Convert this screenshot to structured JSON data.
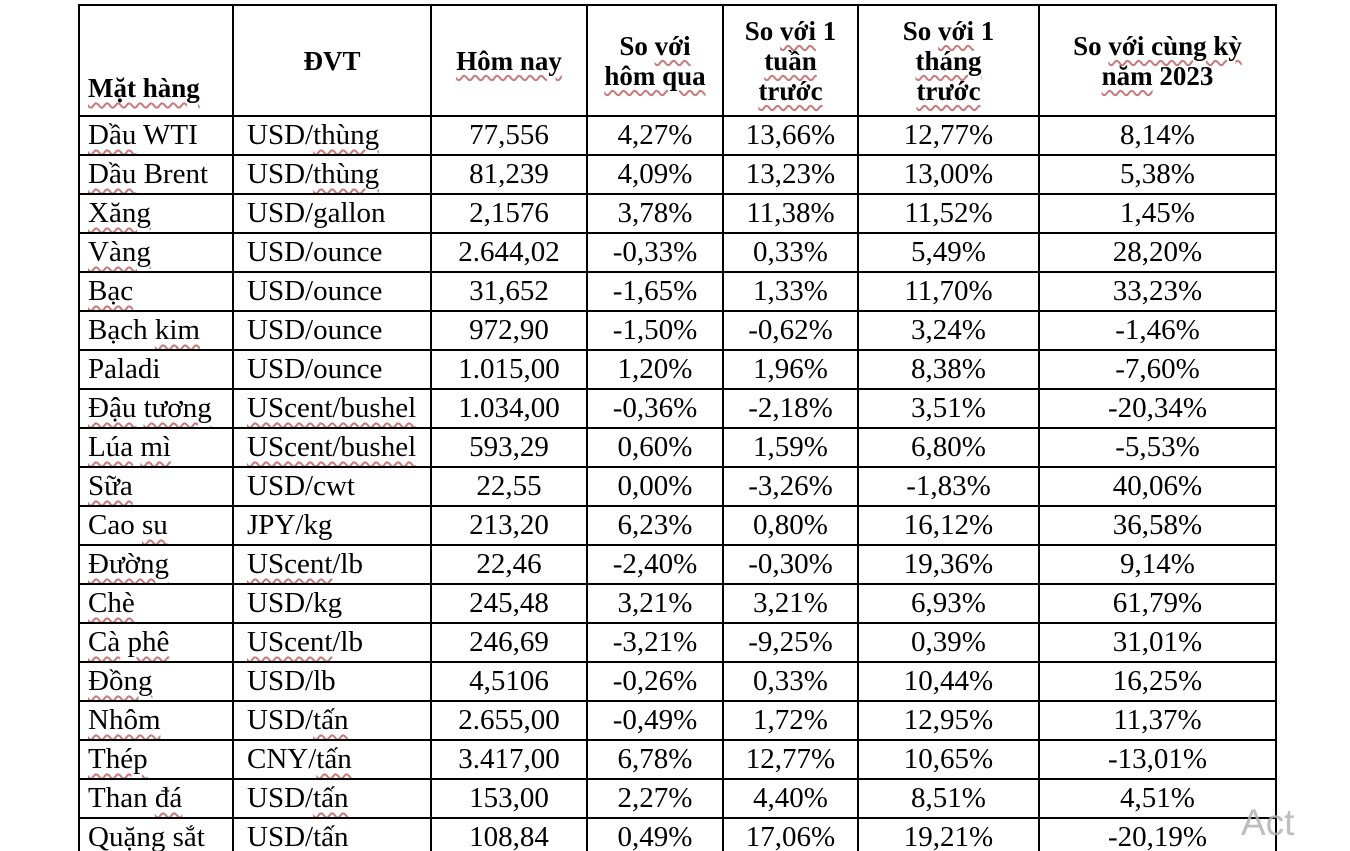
{
  "watermark": {
    "text": "Act"
  },
  "styles": {
    "spellcheck_underline_color": "#c97b7b",
    "table_border_color": "#000000",
    "text_color": "#000000",
    "watermark_color": "#b3b3b3",
    "background_color": "#ffffff"
  },
  "table": {
    "columns": [
      {
        "id": "name",
        "label": "Mặt hàng",
        "lines": [
          "Mặt hàng"
        ],
        "wavy": [
          "Mặt hàng"
        ]
      },
      {
        "id": "unit",
        "label": "ĐVT",
        "lines": [
          "ĐVT"
        ],
        "wavy": []
      },
      {
        "id": "today",
        "label": "Hôm nay",
        "lines": [
          "Hôm nay"
        ],
        "wavy": [
          "Hôm nay"
        ]
      },
      {
        "id": "vs_yesterday",
        "label": "So với hôm qua",
        "lines": [
          "So với",
          "hôm qua"
        ],
        "wavy": [
          "với",
          "hôm qua"
        ]
      },
      {
        "id": "vs_week",
        "label": "So với 1 tuần trước",
        "lines": [
          "So với 1",
          "tuần",
          "trước"
        ],
        "wavy": [
          "với",
          "tuần",
          "trước"
        ]
      },
      {
        "id": "vs_month",
        "label": "So với 1 tháng trước",
        "lines": [
          "So với 1",
          "tháng",
          "trước"
        ],
        "wavy": [
          "với",
          "tháng",
          "trước"
        ]
      },
      {
        "id": "vs_2023",
        "label": "So với cùng kỳ năm 2023",
        "lines": [
          "So với cùng kỳ",
          "năm 2023"
        ],
        "wavy": [
          "với cùng kỳ",
          "năm"
        ]
      }
    ],
    "rows": [
      {
        "name": "Dầu WTI",
        "name_wavy": [
          "Dầu"
        ],
        "unit": "USD/thùng",
        "unit_wavy": [
          "thùng"
        ],
        "today": "77,556",
        "vs_yesterday": "4,27%",
        "vs_week": "13,66%",
        "vs_month": "12,77%",
        "vs_2023": "8,14%"
      },
      {
        "name": "Dầu Brent",
        "name_wavy": [
          "Dầu"
        ],
        "unit": "USD/thùng",
        "unit_wavy": [
          "thùng"
        ],
        "today": "81,239",
        "vs_yesterday": "4,09%",
        "vs_week": "13,23%",
        "vs_month": "13,00%",
        "vs_2023": "5,38%"
      },
      {
        "name": "Xăng",
        "name_wavy": [
          "Xăng"
        ],
        "unit": "USD/gallon",
        "unit_wavy": [],
        "today": "2,1576",
        "vs_yesterday": "3,78%",
        "vs_week": "11,38%",
        "vs_month": "11,52%",
        "vs_2023": "1,45%"
      },
      {
        "name": "Vàng",
        "name_wavy": [
          "Vàng"
        ],
        "unit": "USD/ounce",
        "unit_wavy": [],
        "today": "2.644,02",
        "vs_yesterday": "-0,33%",
        "vs_week": "0,33%",
        "vs_month": "5,49%",
        "vs_2023": "28,20%"
      },
      {
        "name": "Bạc",
        "name_wavy": [
          "Bạc"
        ],
        "unit": "USD/ounce",
        "unit_wavy": [],
        "today": "31,652",
        "vs_yesterday": "-1,65%",
        "vs_week": "1,33%",
        "vs_month": "11,70%",
        "vs_2023": "33,23%"
      },
      {
        "name": "Bạch kim",
        "name_wavy": [
          "kim"
        ],
        "unit": "USD/ounce",
        "unit_wavy": [],
        "today": "972,90",
        "vs_yesterday": "-1,50%",
        "vs_week": "-0,62%",
        "vs_month": "3,24%",
        "vs_2023": "-1,46%"
      },
      {
        "name": "Paladi",
        "name_wavy": [],
        "unit": "USD/ounce",
        "unit_wavy": [],
        "today": "1.015,00",
        "vs_yesterday": "1,20%",
        "vs_week": "1,96%",
        "vs_month": "8,38%",
        "vs_2023": "-7,60%"
      },
      {
        "name": "Đậu tương",
        "name_wavy": [
          "Đậu",
          "tương"
        ],
        "unit": "UScent/bushel",
        "unit_wavy": [
          "UScent/bushel"
        ],
        "today": "1.034,00",
        "vs_yesterday": "-0,36%",
        "vs_week": "-2,18%",
        "vs_month": "3,51%",
        "vs_2023": "-20,34%"
      },
      {
        "name": "Lúa mì",
        "name_wavy": [
          "Lúa",
          "mì"
        ],
        "unit": "UScent/bushel",
        "unit_wavy": [
          "UScent/bushel"
        ],
        "today": "593,29",
        "vs_yesterday": "0,60%",
        "vs_week": "1,59%",
        "vs_month": "6,80%",
        "vs_2023": "-5,53%"
      },
      {
        "name": "Sữa",
        "name_wavy": [
          "Sữa"
        ],
        "unit": "USD/cwt",
        "unit_wavy": [],
        "today": "22,55",
        "vs_yesterday": "0,00%",
        "vs_week": "-3,26%",
        "vs_month": "-1,83%",
        "vs_2023": "40,06%"
      },
      {
        "name": "Cao su",
        "name_wavy": [
          "su"
        ],
        "unit": "JPY/kg",
        "unit_wavy": [],
        "today": "213,20",
        "vs_yesterday": "6,23%",
        "vs_week": "0,80%",
        "vs_month": "16,12%",
        "vs_2023": "36,58%"
      },
      {
        "name": "Đường",
        "name_wavy": [
          "Đường"
        ],
        "unit": "UScent/lb",
        "unit_wavy": [
          "UScent"
        ],
        "today": "22,46",
        "vs_yesterday": "-2,40%",
        "vs_week": "-0,30%",
        "vs_month": "19,36%",
        "vs_2023": "9,14%"
      },
      {
        "name": "Chè",
        "name_wavy": [
          "Chè"
        ],
        "unit": "USD/kg",
        "unit_wavy": [],
        "today": "245,48",
        "vs_yesterday": "3,21%",
        "vs_week": "3,21%",
        "vs_month": "6,93%",
        "vs_2023": "61,79%"
      },
      {
        "name": "Cà phê",
        "name_wavy": [
          "Cà",
          "phê"
        ],
        "unit": "UScent/lb",
        "unit_wavy": [
          "UScent"
        ],
        "today": "246,69",
        "vs_yesterday": "-3,21%",
        "vs_week": "-9,25%",
        "vs_month": "0,39%",
        "vs_2023": "31,01%"
      },
      {
        "name": "Đồng",
        "name_wavy": [
          "Đồng"
        ],
        "unit": "USD/lb",
        "unit_wavy": [],
        "today": "4,5106",
        "vs_yesterday": "-0,26%",
        "vs_week": "0,33%",
        "vs_month": "10,44%",
        "vs_2023": "16,25%"
      },
      {
        "name": "Nhôm",
        "name_wavy": [
          "Nhôm"
        ],
        "unit": "USD/tấn",
        "unit_wavy": [
          "tấn"
        ],
        "today": "2.655,00",
        "vs_yesterday": "-0,49%",
        "vs_week": "1,72%",
        "vs_month": "12,95%",
        "vs_2023": "11,37%"
      },
      {
        "name": "Thép",
        "name_wavy": [
          "Thép"
        ],
        "unit": "CNY/tấn",
        "unit_wavy": [
          "tấn"
        ],
        "today": "3.417,00",
        "vs_yesterday": "6,78%",
        "vs_week": "12,77%",
        "vs_month": "10,65%",
        "vs_2023": "-13,01%"
      },
      {
        "name": "Than đá",
        "name_wavy": [
          "đá"
        ],
        "unit": "USD/tấn",
        "unit_wavy": [
          "tấn"
        ],
        "today": "153,00",
        "vs_yesterday": "2,27%",
        "vs_week": "4,40%",
        "vs_month": "8,51%",
        "vs_2023": "4,51%"
      },
      {
        "name": "Quặng sắt",
        "name_wavy": [
          "Quặng",
          "sắt"
        ],
        "unit": "USD/tấn",
        "unit_wavy": [
          "tấn"
        ],
        "today": "108,84",
        "vs_yesterday": "0,49%",
        "vs_week": "17,06%",
        "vs_month": "19,21%",
        "vs_2023": "-20,19%"
      }
    ]
  }
}
